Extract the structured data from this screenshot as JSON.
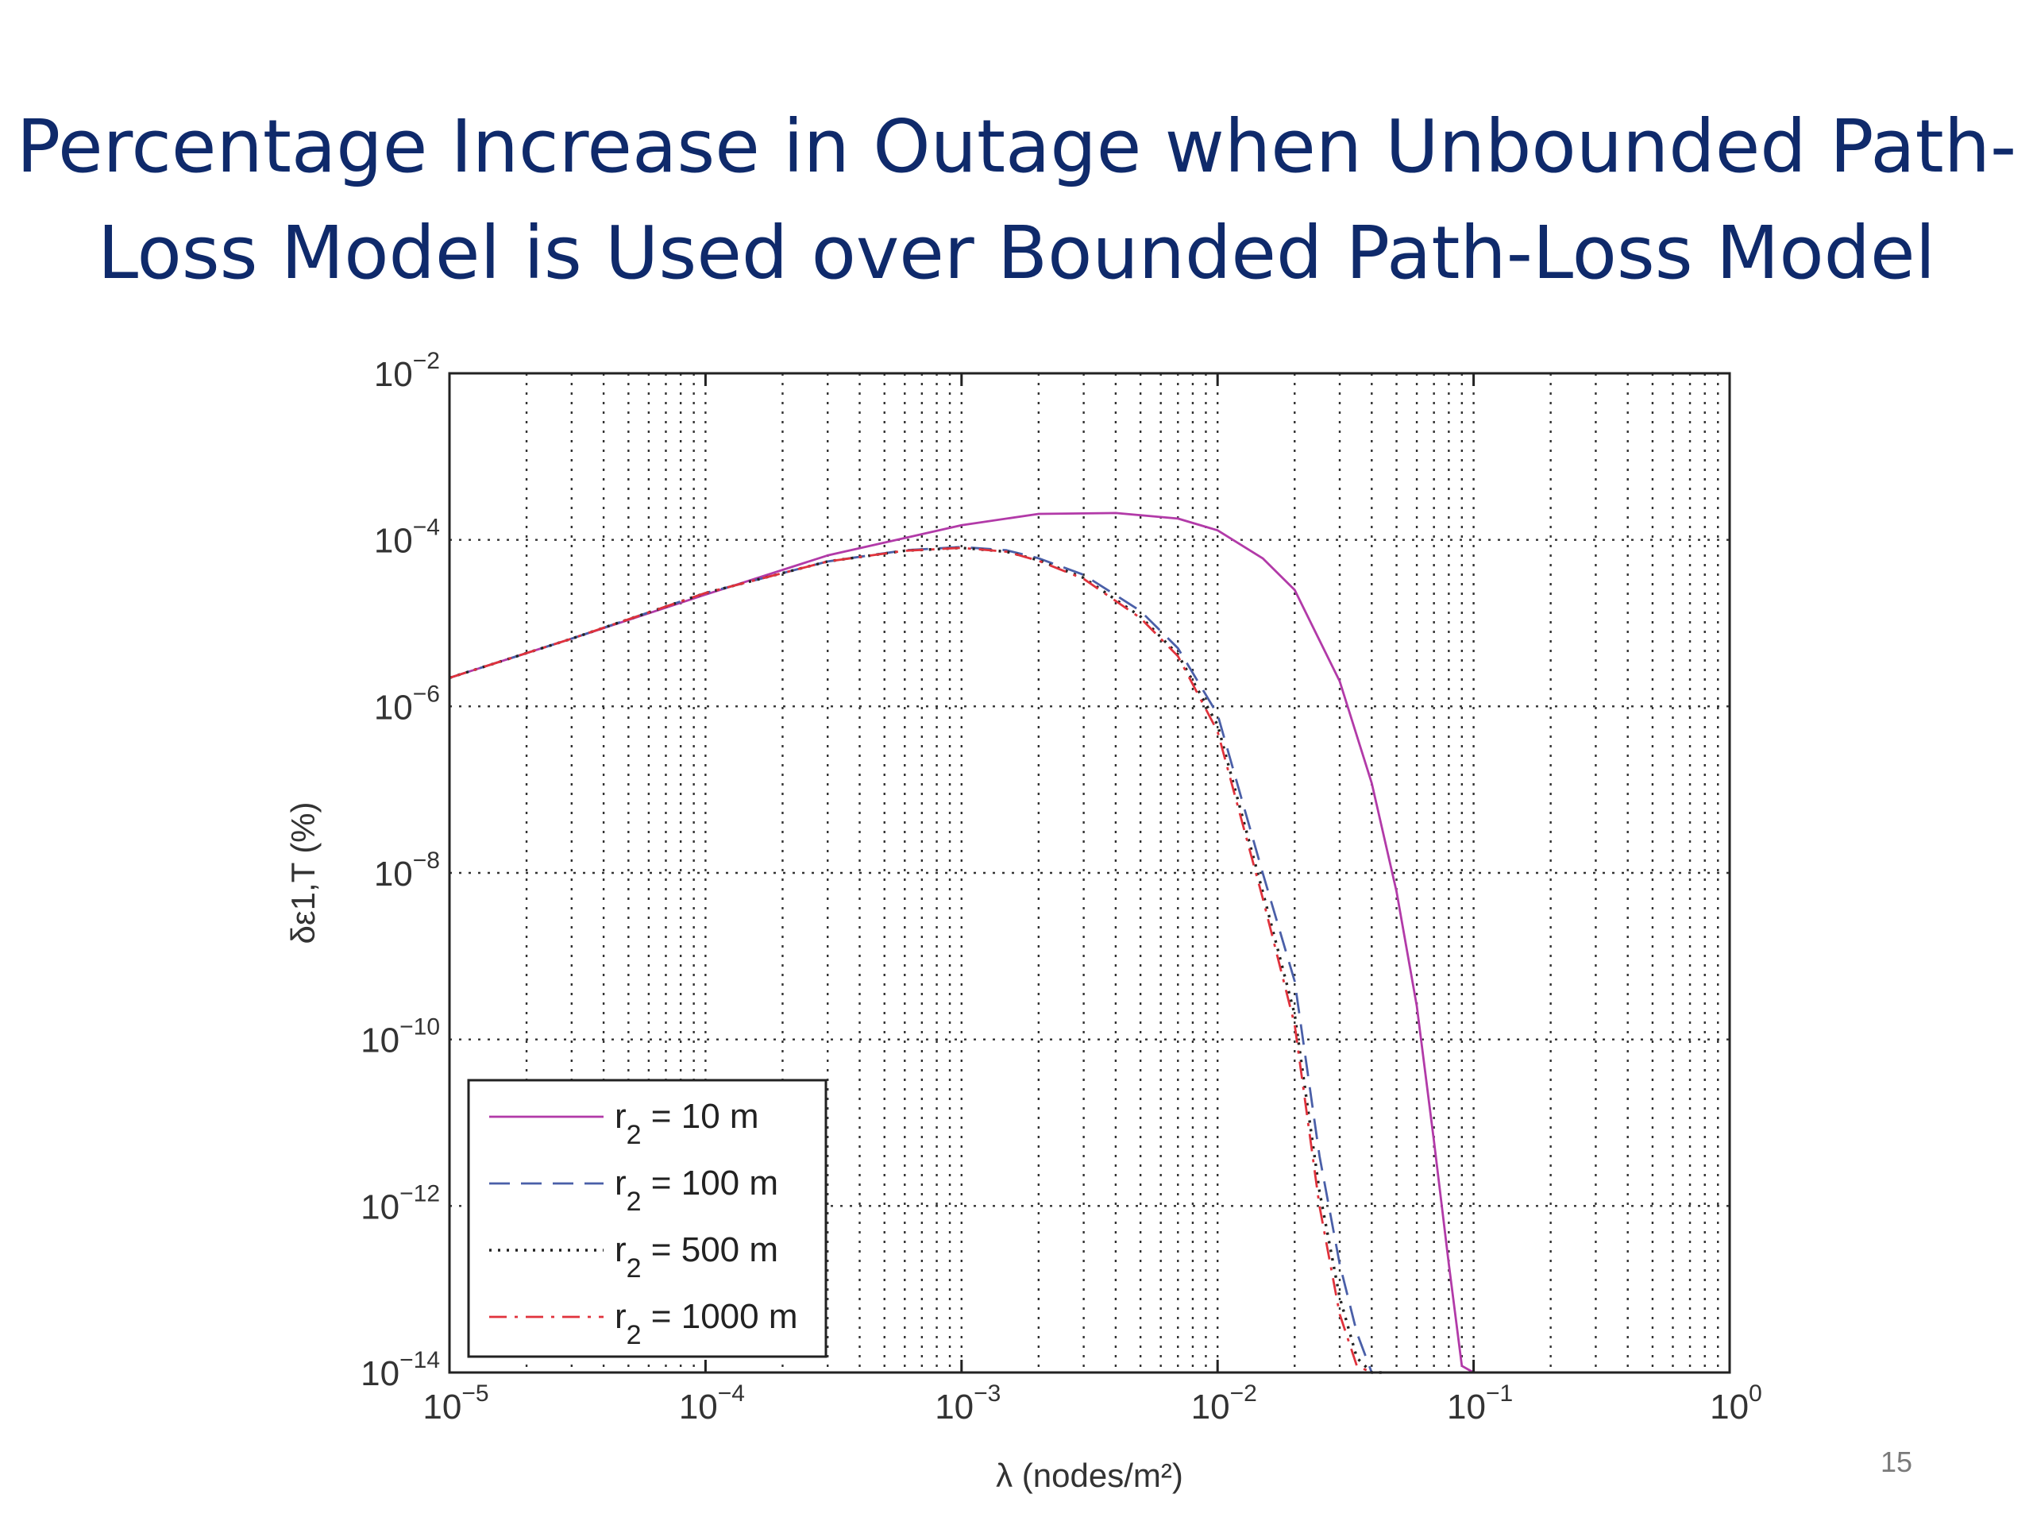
{
  "slide": {
    "title_line1": "Percentage Increase in Outage when Unbounded Path-",
    "title_line2": "Loss Model is Used over Bounded Path-Loss Model",
    "page_number": "15"
  },
  "chart_data": {
    "type": "line",
    "title": "",
    "xlabel": "λ (nodes/m²)",
    "ylabel": "δε1,T (%)",
    "xscale": "log",
    "yscale": "log",
    "xlim": [
      1e-05,
      1
    ],
    "ylim": [
      1e-14,
      0.01
    ],
    "x_ticks": [
      {
        "base": "10",
        "exp": "−5"
      },
      {
        "base": "10",
        "exp": "−4"
      },
      {
        "base": "10",
        "exp": "−3"
      },
      {
        "base": "10",
        "exp": "−2"
      },
      {
        "base": "10",
        "exp": "−1"
      },
      {
        "base": "10",
        "exp": "0"
      }
    ],
    "y_ticks": [
      {
        "base": "10",
        "exp": "−14"
      },
      {
        "base": "10",
        "exp": "−12"
      },
      {
        "base": "10",
        "exp": "−10"
      },
      {
        "base": "10",
        "exp": "−8"
      },
      {
        "base": "10",
        "exp": "−6"
      },
      {
        "base": "10",
        "exp": "−4"
      },
      {
        "base": "10",
        "exp": "−2"
      }
    ],
    "grid": true,
    "legend_position": "bottom-left",
    "series": [
      {
        "name": "r2 = 10 m",
        "legend_main": "r",
        "legend_sub": "2",
        "legend_rest": " = 10 m",
        "color": "#b23aa8",
        "style": "solid",
        "x": [
          1e-05,
          3e-05,
          0.0001,
          0.0003,
          0.001,
          0.002,
          0.004,
          0.007,
          0.01,
          0.015,
          0.02,
          0.03,
          0.04,
          0.05,
          0.06,
          0.07,
          0.08,
          0.09,
          0.1,
          0.11,
          0.12,
          0.13,
          0.15
        ],
        "y": [
          2.2e-06,
          6.5e-06,
          2.2e-05,
          6.5e-05,
          0.00015,
          0.000205,
          0.00021,
          0.00018,
          0.00013,
          6e-05,
          2.5e-05,
          2e-06,
          1.2e-07,
          6e-09,
          2.5e-10,
          6e-12,
          2e-13,
          1.2e-14,
          1e-14,
          1e-14,
          1e-14,
          1e-14,
          1e-14
        ]
      },
      {
        "name": "r2 = 100 m",
        "legend_main": "r",
        "legend_sub": "2",
        "legend_rest": " = 100 m",
        "color": "#4a5fa8",
        "style": "dashed",
        "x": [
          1e-05,
          3e-05,
          0.0001,
          0.0003,
          0.0006,
          0.001,
          0.0015,
          0.002,
          0.003,
          0.005,
          0.007,
          0.01,
          0.015,
          0.02,
          0.025,
          0.03,
          0.035,
          0.04,
          0.045,
          0.05
        ],
        "y": [
          2.2e-06,
          6.5e-06,
          2.3e-05,
          5.5e-05,
          7.5e-05,
          8.2e-05,
          7.5e-05,
          6e-05,
          3.8e-05,
          1.4e-05,
          5e-06,
          8e-07,
          1e-08,
          5e-10,
          4e-12,
          2e-13,
          3e-14,
          1e-14,
          1e-14,
          1e-14
        ]
      },
      {
        "name": "r2 = 500 m",
        "legend_main": "r",
        "legend_sub": "2",
        "legend_rest": " = 500 m",
        "color": "#222222",
        "style": "dotted",
        "x": [
          1e-05,
          3e-05,
          0.0001,
          0.0003,
          0.0006,
          0.001,
          0.0015,
          0.002,
          0.003,
          0.005,
          0.007,
          0.01,
          0.015,
          0.02,
          0.025,
          0.03,
          0.035,
          0.04,
          0.045
        ],
        "y": [
          2.2e-06,
          6.5e-06,
          2.3e-05,
          5.5e-05,
          7.4e-05,
          8e-05,
          7.2e-05,
          5.7e-05,
          3.5e-05,
          1.2e-05,
          4.2e-06,
          6e-07,
          6e-09,
          2e-10,
          1.5e-12,
          8e-14,
          1.5e-14,
          1e-14,
          1e-14
        ]
      },
      {
        "name": "r2 = 1000 m",
        "legend_main": "r",
        "legend_sub": "2",
        "legend_rest": " = 1000 m",
        "color": "#e0323c",
        "style": "dashdot",
        "x": [
          1e-05,
          3e-05,
          0.0001,
          0.0003,
          0.0006,
          0.001,
          0.0015,
          0.002,
          0.003,
          0.005,
          0.007,
          0.01,
          0.015,
          0.02,
          0.025,
          0.03,
          0.035,
          0.04,
          0.045
        ],
        "y": [
          2.2e-06,
          6.5e-06,
          2.3e-05,
          5.5e-05,
          7.4e-05,
          8e-05,
          7.2e-05,
          5.6e-05,
          3.4e-05,
          1.15e-05,
          4e-06,
          5e-07,
          5e-09,
          1.5e-10,
          1e-12,
          5e-14,
          1.2e-14,
          1e-14,
          1e-14
        ]
      }
    ]
  }
}
